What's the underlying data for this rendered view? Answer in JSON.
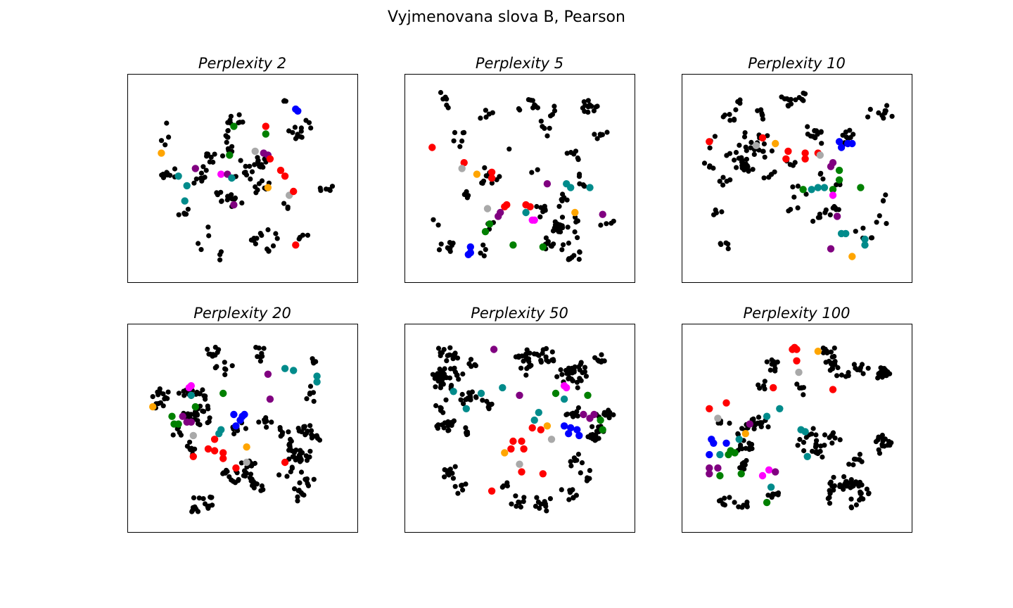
{
  "figure": {
    "title": "Vyjmenovana slova B, Pearson"
  },
  "colors": {
    "black": "#000000",
    "red": "#ff0000",
    "green": "#008000",
    "blue": "#0000ff",
    "purple": "#800080",
    "teal": "#008b8b",
    "orange": "#ffa500",
    "gray": "#a9a9a9",
    "magenta": "#ff00ff"
  },
  "chart_data": [
    {
      "type": "scatter",
      "title": "Perplexity 2",
      "xlabel": "",
      "ylabel": "",
      "xlim": [
        0,
        100
      ],
      "ylim": [
        0,
        100
      ],
      "axis_ticks": false,
      "black_seed": 11,
      "black_count": 150,
      "colored": [
        {
          "c": "blue",
          "x": 75,
          "y": 86
        },
        {
          "c": "blue",
          "x": 76,
          "y": 85
        },
        {
          "c": "red",
          "x": 61,
          "y": 77
        },
        {
          "c": "green",
          "x": 61,
          "y": 73
        },
        {
          "c": "green",
          "x": 46,
          "y": 77
        },
        {
          "c": "orange",
          "x": 12,
          "y": 63
        },
        {
          "c": "purple",
          "x": 60,
          "y": 63
        },
        {
          "c": "purple",
          "x": 62,
          "y": 62
        },
        {
          "c": "red",
          "x": 63,
          "y": 60
        },
        {
          "c": "gray",
          "x": 56,
          "y": 64
        },
        {
          "c": "green",
          "x": 44,
          "y": 62
        },
        {
          "c": "purple",
          "x": 28,
          "y": 55
        },
        {
          "c": "magenta",
          "x": 40,
          "y": 52
        },
        {
          "c": "purple",
          "x": 43,
          "y": 52
        },
        {
          "c": "teal",
          "x": 45,
          "y": 50
        },
        {
          "c": "red",
          "x": 68,
          "y": 54
        },
        {
          "c": "red",
          "x": 70,
          "y": 51
        },
        {
          "c": "teal",
          "x": 20,
          "y": 51
        },
        {
          "c": "teal",
          "x": 24,
          "y": 46
        },
        {
          "c": "orange",
          "x": 62,
          "y": 45
        },
        {
          "c": "gray",
          "x": 72,
          "y": 41
        },
        {
          "c": "red",
          "x": 74,
          "y": 43
        },
        {
          "c": "teal",
          "x": 23,
          "y": 38
        },
        {
          "c": "purple",
          "x": 46,
          "y": 36
        },
        {
          "c": "red",
          "x": 75,
          "y": 15
        }
      ]
    },
    {
      "type": "scatter",
      "title": "Perplexity 5",
      "xlabel": "",
      "ylabel": "",
      "xlim": [
        0,
        100
      ],
      "ylim": [
        0,
        100
      ],
      "axis_ticks": false,
      "black_seed": 23,
      "black_count": 165,
      "colored": [
        {
          "c": "red",
          "x": 9,
          "y": 66
        },
        {
          "c": "red",
          "x": 24,
          "y": 58
        },
        {
          "c": "gray",
          "x": 23,
          "y": 55
        },
        {
          "c": "orange",
          "x": 30,
          "y": 52
        },
        {
          "c": "red",
          "x": 37,
          "y": 53
        },
        {
          "c": "red",
          "x": 37,
          "y": 50
        },
        {
          "c": "purple",
          "x": 63,
          "y": 47
        },
        {
          "c": "teal",
          "x": 72,
          "y": 47
        },
        {
          "c": "teal",
          "x": 74,
          "y": 45
        },
        {
          "c": "teal",
          "x": 83,
          "y": 45
        },
        {
          "c": "gray",
          "x": 35,
          "y": 34
        },
        {
          "c": "red",
          "x": 44,
          "y": 36
        },
        {
          "c": "red",
          "x": 43,
          "y": 35
        },
        {
          "c": "red",
          "x": 53,
          "y": 36
        },
        {
          "c": "red",
          "x": 55,
          "y": 35
        },
        {
          "c": "teal",
          "x": 53,
          "y": 32
        },
        {
          "c": "purple",
          "x": 41,
          "y": 32
        },
        {
          "c": "purple",
          "x": 40,
          "y": 30
        },
        {
          "c": "orange",
          "x": 76,
          "y": 32
        },
        {
          "c": "purple",
          "x": 89,
          "y": 31
        },
        {
          "c": "magenta",
          "x": 56,
          "y": 28
        },
        {
          "c": "magenta",
          "x": 57,
          "y": 28
        },
        {
          "c": "green",
          "x": 36,
          "y": 26
        },
        {
          "c": "green",
          "x": 34,
          "y": 22
        },
        {
          "c": "green",
          "x": 47,
          "y": 15
        },
        {
          "c": "green",
          "x": 61,
          "y": 14
        },
        {
          "c": "blue",
          "x": 27,
          "y": 14
        },
        {
          "c": "blue",
          "x": 27,
          "y": 11
        },
        {
          "c": "blue",
          "x": 26,
          "y": 10
        }
      ]
    },
    {
      "type": "scatter",
      "title": "Perplexity 10",
      "xlabel": "",
      "ylabel": "",
      "xlim": [
        0,
        100
      ],
      "ylim": [
        0,
        100
      ],
      "axis_ticks": false,
      "black_seed": 37,
      "black_count": 170,
      "colored": [
        {
          "c": "red",
          "x": 9,
          "y": 69
        },
        {
          "c": "red",
          "x": 34,
          "y": 71
        },
        {
          "c": "gray",
          "x": 31,
          "y": 67
        },
        {
          "c": "orange",
          "x": 40,
          "y": 68
        },
        {
          "c": "red",
          "x": 46,
          "y": 64
        },
        {
          "c": "red",
          "x": 45,
          "y": 60
        },
        {
          "c": "red",
          "x": 54,
          "y": 60
        },
        {
          "c": "red",
          "x": 54,
          "y": 63
        },
        {
          "c": "red",
          "x": 60,
          "y": 63
        },
        {
          "c": "blue",
          "x": 70,
          "y": 69
        },
        {
          "c": "blue",
          "x": 74,
          "y": 68
        },
        {
          "c": "blue",
          "x": 76,
          "y": 68
        },
        {
          "c": "blue",
          "x": 71,
          "y": 66
        },
        {
          "c": "gray",
          "x": 61,
          "y": 62
        },
        {
          "c": "purple",
          "x": 67,
          "y": 58
        },
        {
          "c": "purple",
          "x": 66,
          "y": 56
        },
        {
          "c": "green",
          "x": 70,
          "y": 54
        },
        {
          "c": "green",
          "x": 70,
          "y": 49
        },
        {
          "c": "teal",
          "x": 57,
          "y": 44
        },
        {
          "c": "teal",
          "x": 60,
          "y": 45
        },
        {
          "c": "teal",
          "x": 63,
          "y": 45
        },
        {
          "c": "green",
          "x": 53,
          "y": 44
        },
        {
          "c": "green",
          "x": 67,
          "y": 44
        },
        {
          "c": "magenta",
          "x": 67,
          "y": 41
        },
        {
          "c": "green",
          "x": 80,
          "y": 45
        },
        {
          "c": "purple",
          "x": 69,
          "y": 30
        },
        {
          "c": "teal",
          "x": 73,
          "y": 21
        },
        {
          "c": "teal",
          "x": 71,
          "y": 21
        },
        {
          "c": "teal",
          "x": 82,
          "y": 18
        },
        {
          "c": "teal",
          "x": 82,
          "y": 15
        },
        {
          "c": "purple",
          "x": 66,
          "y": 13
        },
        {
          "c": "orange",
          "x": 76,
          "y": 9
        }
      ]
    },
    {
      "type": "scatter",
      "title": "Perplexity 20",
      "xlabel": "",
      "ylabel": "",
      "xlim": [
        0,
        100
      ],
      "ylim": [
        0,
        100
      ],
      "axis_ticks": false,
      "black_seed": 41,
      "black_count": 260,
      "colored": [
        {
          "c": "teal",
          "x": 70,
          "y": 81
        },
        {
          "c": "teal",
          "x": 74,
          "y": 80
        },
        {
          "c": "teal",
          "x": 85,
          "y": 77
        },
        {
          "c": "teal",
          "x": 85,
          "y": 74
        },
        {
          "c": "purple",
          "x": 62,
          "y": 78
        },
        {
          "c": "magenta",
          "x": 26,
          "y": 72
        },
        {
          "c": "magenta",
          "x": 25,
          "y": 71
        },
        {
          "c": "green",
          "x": 41,
          "y": 68
        },
        {
          "c": "purple",
          "x": 63,
          "y": 65
        },
        {
          "c": "teal",
          "x": 26,
          "y": 67
        },
        {
          "c": "orange",
          "x": 8,
          "y": 61
        },
        {
          "c": "green",
          "x": 28,
          "y": 61
        },
        {
          "c": "green",
          "x": 17,
          "y": 56
        },
        {
          "c": "purple",
          "x": 22,
          "y": 56
        },
        {
          "c": "purple",
          "x": 24,
          "y": 53
        },
        {
          "c": "purple",
          "x": 26,
          "y": 53
        },
        {
          "c": "green",
          "x": 18,
          "y": 52
        },
        {
          "c": "green",
          "x": 20,
          "y": 52
        },
        {
          "c": "blue",
          "x": 46,
          "y": 57
        },
        {
          "c": "blue",
          "x": 50,
          "y": 56
        },
        {
          "c": "blue",
          "x": 51,
          "y": 57
        },
        {
          "c": "blue",
          "x": 49,
          "y": 54
        },
        {
          "c": "blue",
          "x": 47,
          "y": 51
        },
        {
          "c": "teal",
          "x": 40,
          "y": 49
        },
        {
          "c": "teal",
          "x": 39,
          "y": 47
        },
        {
          "c": "gray",
          "x": 27,
          "y": 46
        },
        {
          "c": "red",
          "x": 37,
          "y": 44
        },
        {
          "c": "red",
          "x": 34,
          "y": 39
        },
        {
          "c": "red",
          "x": 37,
          "y": 38
        },
        {
          "c": "red",
          "x": 41,
          "y": 37
        },
        {
          "c": "red",
          "x": 41,
          "y": 34
        },
        {
          "c": "red",
          "x": 27,
          "y": 35
        },
        {
          "c": "orange",
          "x": 52,
          "y": 40
        },
        {
          "c": "gray",
          "x": 52,
          "y": 32
        },
        {
          "c": "red",
          "x": 47,
          "y": 29
        },
        {
          "c": "red",
          "x": 70,
          "y": 32
        }
      ]
    },
    {
      "type": "scatter",
      "title": "Perplexity 50",
      "xlabel": "",
      "ylabel": "",
      "xlim": [
        0,
        100
      ],
      "ylim": [
        0,
        100
      ],
      "axis_ticks": false,
      "black_seed": 53,
      "black_count": 290,
      "colored": [
        {
          "c": "purple",
          "x": 38,
          "y": 91
        },
        {
          "c": "magenta",
          "x": 71,
          "y": 72
        },
        {
          "c": "magenta",
          "x": 72,
          "y": 71
        },
        {
          "c": "teal",
          "x": 19,
          "y": 69
        },
        {
          "c": "teal",
          "x": 32,
          "y": 68
        },
        {
          "c": "teal",
          "x": 42,
          "y": 71
        },
        {
          "c": "purple",
          "x": 50,
          "y": 67
        },
        {
          "c": "green",
          "x": 67,
          "y": 68
        },
        {
          "c": "green",
          "x": 82,
          "y": 67
        },
        {
          "c": "teal",
          "x": 71,
          "y": 65
        },
        {
          "c": "teal",
          "x": 25,
          "y": 60
        },
        {
          "c": "teal",
          "x": 59,
          "y": 58
        },
        {
          "c": "purple",
          "x": 80,
          "y": 57
        },
        {
          "c": "purple",
          "x": 85,
          "y": 57
        },
        {
          "c": "purple",
          "x": 83,
          "y": 55
        },
        {
          "c": "green",
          "x": 88,
          "y": 54
        },
        {
          "c": "green",
          "x": 89,
          "y": 49
        },
        {
          "c": "teal",
          "x": 57,
          "y": 54
        },
        {
          "c": "red",
          "x": 56,
          "y": 50
        },
        {
          "c": "red",
          "x": 60,
          "y": 49
        },
        {
          "c": "orange",
          "x": 63,
          "y": 51
        },
        {
          "c": "blue",
          "x": 71,
          "y": 51
        },
        {
          "c": "blue",
          "x": 74,
          "y": 50
        },
        {
          "c": "blue",
          "x": 77,
          "y": 49
        },
        {
          "c": "blue",
          "x": 78,
          "y": 46
        },
        {
          "c": "blue",
          "x": 73,
          "y": 47
        },
        {
          "c": "gray",
          "x": 65,
          "y": 44
        },
        {
          "c": "red",
          "x": 47,
          "y": 43
        },
        {
          "c": "red",
          "x": 51,
          "y": 43
        },
        {
          "c": "red",
          "x": 46,
          "y": 39
        },
        {
          "c": "red",
          "x": 52,
          "y": 39
        },
        {
          "c": "orange",
          "x": 43,
          "y": 37
        },
        {
          "c": "gray",
          "x": 50,
          "y": 31
        },
        {
          "c": "red",
          "x": 51,
          "y": 27
        },
        {
          "c": "red",
          "x": 61,
          "y": 26
        },
        {
          "c": "red",
          "x": 37,
          "y": 17
        }
      ]
    },
    {
      "type": "scatter",
      "title": "Perplexity 100",
      "xlabel": "",
      "ylabel": "",
      "xlim": [
        0,
        100
      ],
      "ylim": [
        0,
        100
      ],
      "axis_ticks": false,
      "black_seed": 67,
      "black_count": 250,
      "colored": [
        {
          "c": "red",
          "x": 48,
          "y": 91
        },
        {
          "c": "red",
          "x": 49,
          "y": 92
        },
        {
          "c": "red",
          "x": 50,
          "y": 91
        },
        {
          "c": "orange",
          "x": 60,
          "y": 90
        },
        {
          "c": "red",
          "x": 50,
          "y": 85
        },
        {
          "c": "gray",
          "x": 51,
          "y": 79
        },
        {
          "c": "red",
          "x": 39,
          "y": 71
        },
        {
          "c": "red",
          "x": 67,
          "y": 70
        },
        {
          "c": "red",
          "x": 17,
          "y": 63
        },
        {
          "c": "red",
          "x": 9,
          "y": 60
        },
        {
          "c": "gray",
          "x": 13,
          "y": 55
        },
        {
          "c": "teal",
          "x": 42,
          "y": 60
        },
        {
          "c": "teal",
          "x": 36,
          "y": 56
        },
        {
          "c": "purple",
          "x": 28,
          "y": 52
        },
        {
          "c": "orange",
          "x": 26,
          "y": 47
        },
        {
          "c": "teal",
          "x": 23,
          "y": 44
        },
        {
          "c": "teal",
          "x": 52,
          "y": 49
        },
        {
          "c": "teal",
          "x": 54,
          "y": 48
        },
        {
          "c": "blue",
          "x": 10,
          "y": 44
        },
        {
          "c": "blue",
          "x": 11,
          "y": 42
        },
        {
          "c": "blue",
          "x": 17,
          "y": 42
        },
        {
          "c": "blue",
          "x": 9,
          "y": 36
        },
        {
          "c": "teal",
          "x": 14,
          "y": 36
        },
        {
          "c": "green",
          "x": 18,
          "y": 36
        },
        {
          "c": "green",
          "x": 21,
          "y": 37
        },
        {
          "c": "green",
          "x": 19,
          "y": 38
        },
        {
          "c": "teal",
          "x": 55,
          "y": 35
        },
        {
          "c": "purple",
          "x": 9,
          "y": 29
        },
        {
          "c": "purple",
          "x": 13,
          "y": 29
        },
        {
          "c": "purple",
          "x": 9,
          "y": 26
        },
        {
          "c": "magenta",
          "x": 37,
          "y": 28
        },
        {
          "c": "purple",
          "x": 40,
          "y": 27
        },
        {
          "c": "magenta",
          "x": 34,
          "y": 25
        },
        {
          "c": "green",
          "x": 14,
          "y": 25
        },
        {
          "c": "green",
          "x": 24,
          "y": 26
        },
        {
          "c": "teal",
          "x": 38,
          "y": 19
        },
        {
          "c": "green",
          "x": 36,
          "y": 11
        }
      ]
    }
  ]
}
